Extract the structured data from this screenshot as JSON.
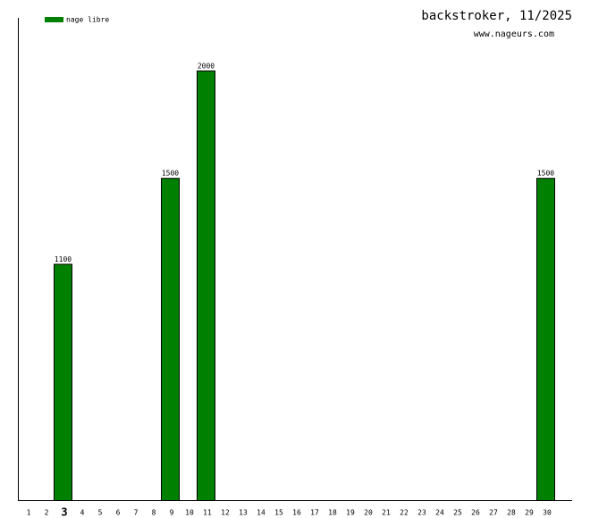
{
  "chart_data": {
    "type": "bar",
    "title": "backstroker, 11/2025",
    "subtitle": "www.nageurs.com",
    "categories": [
      "1",
      "2",
      "3",
      "4",
      "5",
      "6",
      "7",
      "8",
      "9",
      "10",
      "11",
      "12",
      "13",
      "14",
      "15",
      "16",
      "17",
      "18",
      "19",
      "20",
      "21",
      "22",
      "23",
      "24",
      "25",
      "26",
      "27",
      "28",
      "29",
      "30"
    ],
    "highlighted": "3",
    "series": [
      {
        "name": "nage libre",
        "color": "#008000",
        "values": [
          null,
          null,
          1100,
          null,
          null,
          null,
          null,
          null,
          1500,
          null,
          2000,
          null,
          null,
          null,
          null,
          null,
          null,
          null,
          null,
          null,
          null,
          null,
          null,
          null,
          null,
          null,
          null,
          null,
          null,
          1500
        ]
      }
    ],
    "ylim": [
      0,
      2245
    ],
    "legend": "top-left"
  }
}
